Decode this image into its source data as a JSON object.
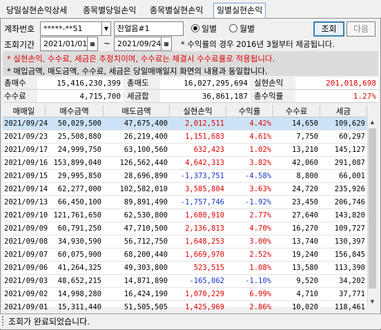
{
  "tabs": [
    {
      "label": "당일실현손익상세"
    },
    {
      "label": "종목별당일손익"
    },
    {
      "label": "종목별실현손익"
    },
    {
      "label": "일별실현손익"
    }
  ],
  "account": {
    "label": "계좌번호",
    "number": "*****-**51",
    "owner": "찬얼음#1"
  },
  "period": {
    "label": "조회기간",
    "start": "2021/01/01",
    "separator": "~",
    "end": "2021/09/24"
  },
  "view_mode": {
    "options": [
      "일별",
      "월별"
    ],
    "selected": "일별"
  },
  "buttons": {
    "search": "조회",
    "next": "다음"
  },
  "notes": {
    "line1": "* 수익률의 경우 2016년 3월부터 제공됩니다.",
    "line2": "* 실현손익, 수수료, 세금은 추정치이며, 수수료는 체결시 수수료률로 적용됩니다.",
    "line3": "* 매입금액, 매도금액, 수수료, 세금은 당일매매일지 화면의 내용과 동일합니다."
  },
  "summary": {
    "row1": [
      {
        "label": "총매수",
        "value": "15,416,230,399"
      },
      {
        "label": "총매도",
        "value": "16,027,295,694"
      },
      {
        "label": "실현손익",
        "value": "201,018,698",
        "color": "#e00000"
      }
    ],
    "row2": [
      {
        "label": "수수료",
        "value": "4,715,700"
      },
      {
        "label": "세금합",
        "value": "36,861,187"
      },
      {
        "label": "총수익률",
        "value": "1.27%",
        "color": "#e00000"
      }
    ]
  },
  "table": {
    "columns": [
      "매매일",
      "매수금액",
      "매도금액",
      "실현손익",
      "수익률",
      "수수료",
      "세금"
    ],
    "rows": [
      {
        "date": "2021/09/24",
        "buy": "50,029,500",
        "sell": "47,675,400",
        "pnl": "2,012,511",
        "rate": "4.42%",
        "fee": "14,650",
        "tax": "109,629",
        "sign": "pos"
      },
      {
        "date": "2021/09/23",
        "buy": "25,508,880",
        "sell": "26,219,400",
        "pnl": "1,151,683",
        "rate": "4.61%",
        "fee": "7,750",
        "tax": "60,297",
        "sign": "pos"
      },
      {
        "date": "2021/09/17",
        "buy": "24,999,750",
        "sell": "63,100,560",
        "pnl": "632,423",
        "rate": "1.02%",
        "fee": "13,210",
        "tax": "145,127",
        "sign": "pos"
      },
      {
        "date": "2021/09/16",
        "buy": "153,899,040",
        "sell": "126,562,440",
        "pnl": "4,642,313",
        "rate": "3.82%",
        "fee": "42,060",
        "tax": "291,087",
        "sign": "pos"
      },
      {
        "date": "2021/09/15",
        "buy": "29,995,850",
        "sell": "28,696,890",
        "pnl": "-1,373,751",
        "rate": "-4.58%",
        "fee": "8,800",
        "tax": "66,001",
        "sign": "neg"
      },
      {
        "date": "2021/09/14",
        "buy": "62,277,000",
        "sell": "102,582,010",
        "pnl": "3,585,804",
        "rate": "3.63%",
        "fee": "24,720",
        "tax": "235,926",
        "sign": "pos"
      },
      {
        "date": "2021/09/13",
        "buy": "66,450,100",
        "sell": "89,891,490",
        "pnl": "-1,757,746",
        "rate": "-1.92%",
        "fee": "23,450",
        "tax": "206,746",
        "sign": "neg"
      },
      {
        "date": "2021/09/10",
        "buy": "121,761,650",
        "sell": "62,530,800",
        "pnl": "1,680,910",
        "rate": "2.77%",
        "fee": "27,640",
        "tax": "143,820",
        "sign": "pos"
      },
      {
        "date": "2021/09/09",
        "buy": "60,791,250",
        "sell": "47,710,500",
        "pnl": "2,136,813",
        "rate": "4.70%",
        "fee": "16,270",
        "tax": "109,727",
        "sign": "pos"
      },
      {
        "date": "2021/09/08",
        "buy": "34,930,590",
        "sell": "56,712,750",
        "pnl": "1,648,253",
        "rate": "3.00%",
        "fee": "13,740",
        "tax": "130,397",
        "sign": "pos"
      },
      {
        "date": "2021/09/07",
        "buy": "60,075,900",
        "sell": "68,200,440",
        "pnl": "1,669,970",
        "rate": "2.52%",
        "fee": "19,240",
        "tax": "156,845",
        "sign": "pos"
      },
      {
        "date": "2021/09/06",
        "buy": "41,264,325",
        "sell": "49,303,800",
        "pnl": "523,515",
        "rate": "1.08%",
        "fee": "13,580",
        "tax": "113,390",
        "sign": "pos"
      },
      {
        "date": "2021/09/03",
        "buy": "48,652,215",
        "sell": "14,871,890",
        "pnl": "-165,062",
        "rate": "-1.10%",
        "fee": "9,520",
        "tax": "34,202",
        "sign": "neg"
      },
      {
        "date": "2021/09/02",
        "buy": "14,998,280",
        "sell": "16,424,190",
        "pnl": "1,070,229",
        "rate": "6.99%",
        "fee": "4,710",
        "tax": "37,771",
        "sign": "pos"
      },
      {
        "date": "2021/09/01",
        "buy": "15,311,440",
        "sell": "51,505,505",
        "pnl": "1,425,969",
        "rate": "2.86%",
        "fee": "10,020",
        "tax": "118,461",
        "sign": "pos"
      }
    ]
  },
  "status": {
    "message": "조회가 완료되었습니다."
  },
  "colors": {
    "positive": "#e00000",
    "negative": "#1638c8",
    "selected_row": "#cce3f7",
    "active_tab_border": "#7a9ac9"
  }
}
